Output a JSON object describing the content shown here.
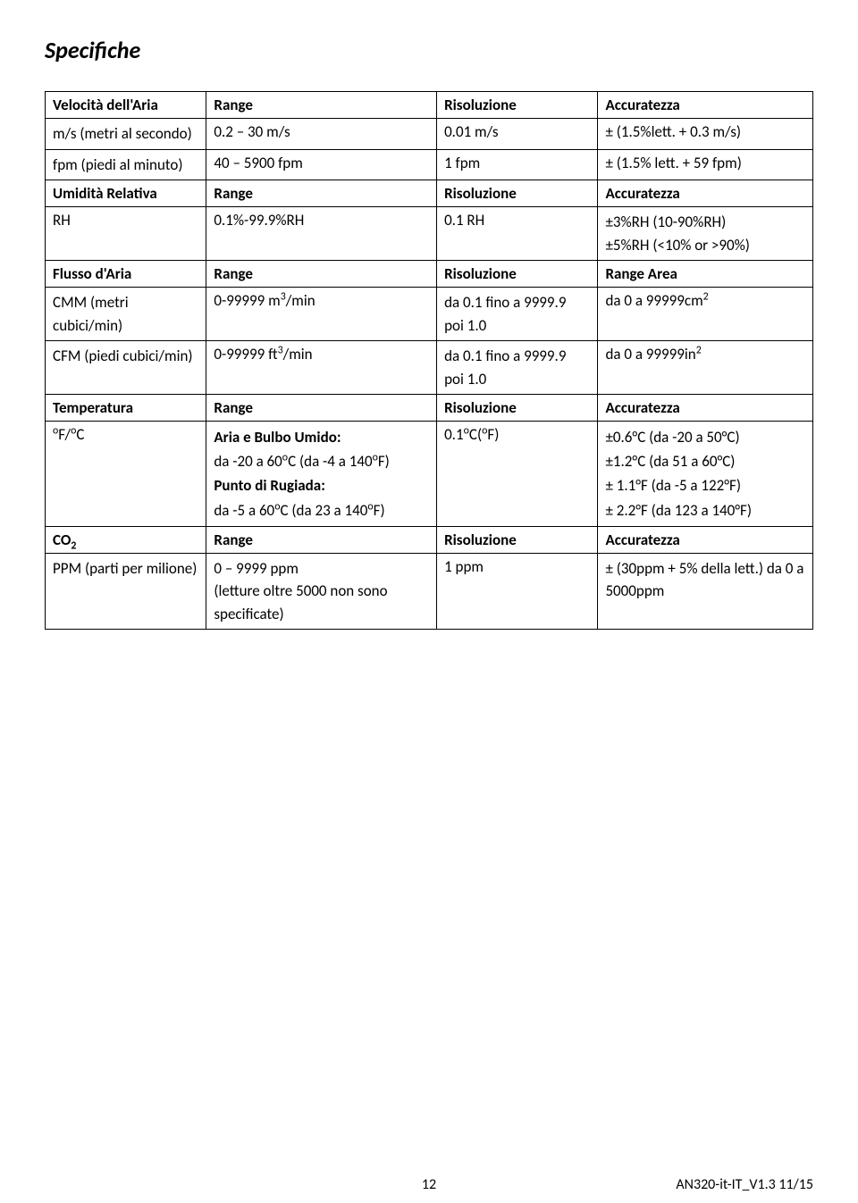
{
  "title": "Specifiche",
  "border_color": "#000000",
  "background_color": "#ffffff",
  "text_color": "#000000",
  "base_fontsize": 17,
  "title_fontsize": 26,
  "sections": [
    {
      "header": [
        "Velocità dell'Aria",
        "Range",
        "Risoluzione",
        "Accuratezza"
      ],
      "rows": [
        {
          "cells": [
            "m/s (metri al secondo)",
            "0.2 – 30 m/s",
            "0.01 m/s",
            "± (1.5%lett. + 0.3 m/s)"
          ]
        },
        {
          "cells": [
            "fpm (piedi al minuto)",
            "40 – 5900 fpm",
            "1 fpm",
            "± (1.5% lett. + 59 fpm)"
          ]
        }
      ]
    },
    {
      "header": [
        "Umidità Relativa",
        "Range",
        "Risoluzione",
        "Accuratezza"
      ],
      "rows": [
        {
          "cells": [
            "RH",
            "0.1%-99.9%RH",
            "0.1 RH",
            "±3%RH (10-90%RH)\n±5%RH (<10% or >90%)"
          ]
        }
      ]
    },
    {
      "header": [
        "Flusso d'Aria",
        "Range",
        "Risoluzione",
        "Range Area"
      ],
      "rows": [
        {
          "cells": [
            "CMM (metri cubici/min)",
            "0-99999 m³/min",
            "da 0.1 fino a 9999.9\npoi 1.0",
            "da 0 a 99999cm²"
          ],
          "sup_c2": "3",
          "base_c2": "0-99999 m",
          "suffix_c2": "/min",
          "sup_c4": "2",
          "base_c4": "da 0 a 99999cm"
        },
        {
          "cells": [
            "CFM (piedi cubici/min)",
            "0-99999 ft³/min",
            "da 0.1 fino a 9999.9\npoi 1.0",
            "da 0 a 99999in²"
          ],
          "sup_c2": "3",
          "base_c2": "0-99999 ft",
          "suffix_c2": "/min",
          "sup_c4": "2",
          "base_c4": "da 0 a 99999in"
        }
      ]
    },
    {
      "header": [
        "Temperatura",
        "Range",
        "Risoluzione",
        "Accuratezza"
      ],
      "rows": [
        {
          "c1_sup1": "o",
          "c1_t1": "F/",
          "c1_sup2": "o",
          "c1_t2": "C",
          "c2_bold1": "Aria e Bulbo Umido:",
          "c2_line2a": "da -20 a 60",
          "c2_sup2": "o",
          "c2_line2b": "C (da -4 a 140",
          "c2_sup3": "o",
          "c2_line2c": "F)",
          "c2_bold2": "Punto di Rugiada:",
          "c2_line4a": "da -5 a 60",
          "c2_sup4": "o",
          "c2_line4b": "C (da 23 a 140",
          "c2_sup5": "o",
          "c2_line4c": "F)",
          "c3_t1": "0.1",
          "c3_sup1": "o",
          "c3_t2": "C(",
          "c3_sup2": "o",
          "c3_t3": "F)",
          "c4_line1": "±0.6°C (da -20 a 50°C)",
          "c4_line2": "±1.2°C (da 51 a 60°C)",
          "c4_line3": "± 1.1°F (da -5 a 122°F)",
          "c4_line4": "± 2.2°F (da 123 a 140°F)"
        }
      ]
    },
    {
      "header": [
        "CO₂",
        "Range",
        "Risoluzione",
        "Accuratezza"
      ],
      "header_c1_base": "CO",
      "header_c1_sub": "2",
      "rows": [
        {
          "cells": [
            "PPM (parti per milione)",
            "0 – 9999 ppm\n(letture oltre 5000 non sono specificate)",
            "1 ppm",
            "± (30ppm + 5% della lett.) da 0 a 5000ppm"
          ]
        }
      ]
    }
  ],
  "footer": {
    "page": "12",
    "docid": "AN320-it-IT_V1.3  11/15"
  }
}
